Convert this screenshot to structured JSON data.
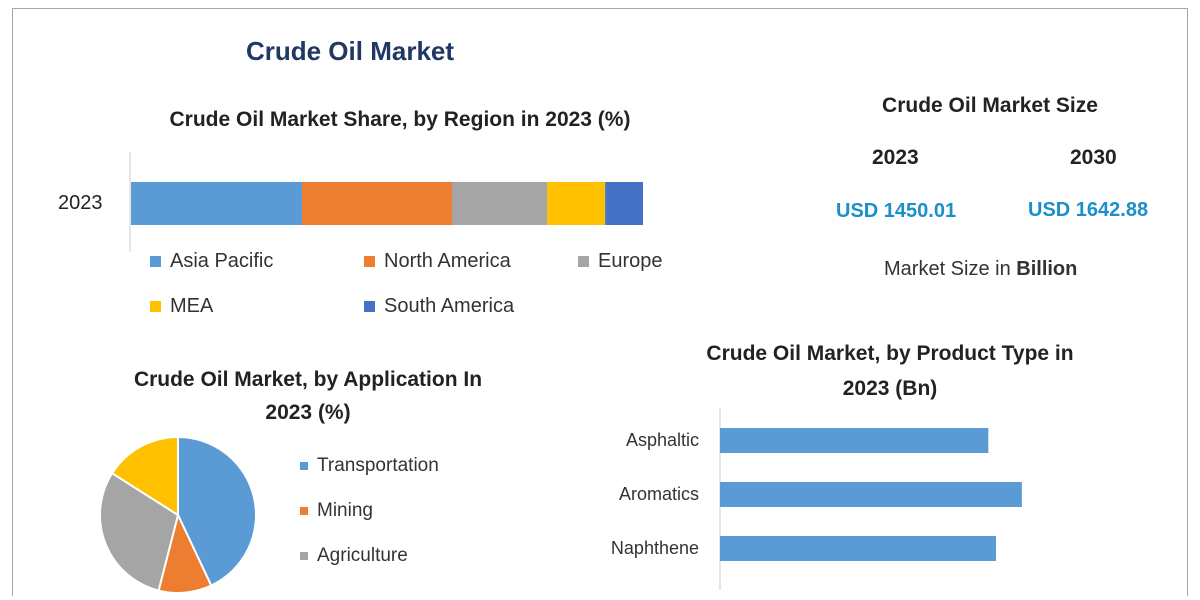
{
  "title": "Crude Oil Market",
  "market_size": {
    "title": "Crude Oil Market Size",
    "year1": "2023",
    "year2": "2030",
    "value1": "USD 1450.01",
    "value2": "USD 1642.88",
    "note_prefix": "Market Size in ",
    "note_bold": "Billion"
  },
  "chart_data": [
    {
      "type": "bar",
      "stacked": true,
      "orientation": "horizontal",
      "title": "Crude Oil Market Share, by Region in 2023 (%)",
      "categories": [
        "2023"
      ],
      "series": [
        {
          "name": "Asia Pacific",
          "values": [
            33.4
          ],
          "color": "#5b9bd5"
        },
        {
          "name": "North America",
          "values": [
            29.3
          ],
          "color": "#ed7d31"
        },
        {
          "name": "Europe",
          "values": [
            18.6
          ],
          "color": "#a5a5a5"
        },
        {
          "name": "MEA",
          "values": [
            11.3
          ],
          "color": "#ffc000"
        },
        {
          "name": "South America",
          "values": [
            7.4
          ],
          "color": "#4472c4"
        }
      ],
      "legend": "bottom"
    },
    {
      "type": "pie",
      "title_line1": "Crude Oil Market, by Application In",
      "title_line2": "2023 (%)",
      "labels": [
        "Transportation",
        "Mining",
        "Agriculture",
        ""
      ],
      "values": [
        43,
        11,
        30,
        16
      ],
      "colors": [
        "#5b9bd5",
        "#ed7d31",
        "#a5a5a5",
        "#ffc000"
      ],
      "legend": "right"
    },
    {
      "type": "bar",
      "orientation": "horizontal",
      "title_line1": "Crude Oil Market, by Product Type in",
      "title_line2": "2023 (Bn)",
      "categories": [
        "Asphaltic",
        "Aromatics",
        "Naphthene"
      ],
      "values": [
        280,
        315,
        288
      ],
      "color": "#5b9bd5",
      "xlim": [
        0,
        480
      ]
    }
  ]
}
